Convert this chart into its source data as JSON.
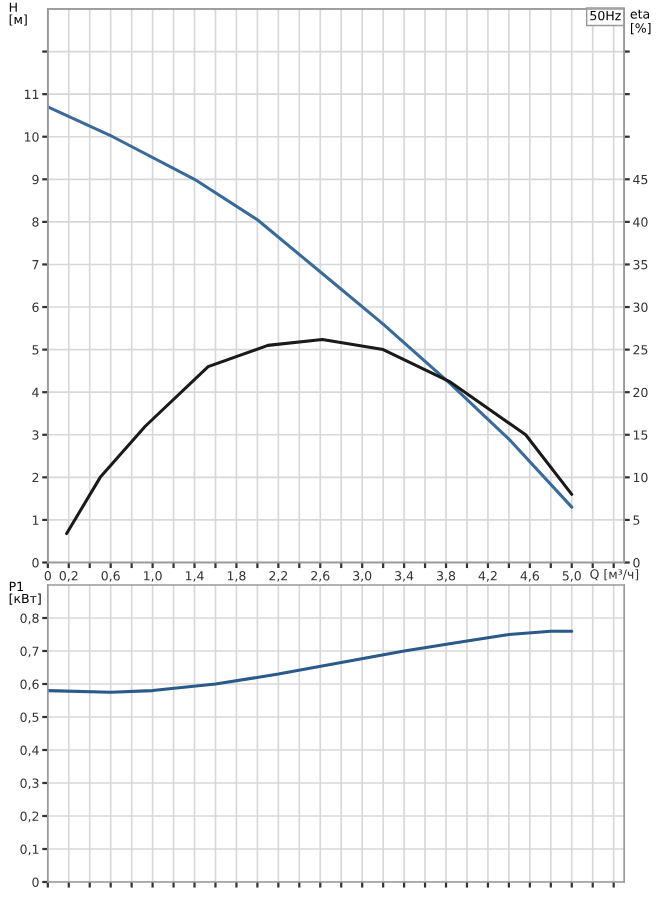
{
  "chart_data": [
    {
      "type": "line",
      "ylabel": "H\n[м]",
      "y2label": "eta\n[%]",
      "xlabel": "Q [м³/ч]",
      "annotations": [
        "50Hz"
      ],
      "xlim": [
        0,
        5.5
      ],
      "xticks": [
        0,
        {
          "value": 0.2,
          "label": "0,2"
        },
        {
          "value": 0.4,
          "label": null
        },
        {
          "value": 0.6,
          "label": "0,6"
        },
        {
          "value": 0.8,
          "label": null
        },
        {
          "value": 1.0,
          "label": "1,0"
        },
        {
          "value": 1.2,
          "label": null
        },
        {
          "value": 1.4,
          "label": "1,4"
        },
        {
          "value": 1.6,
          "label": null
        },
        {
          "value": 1.8,
          "label": "1,8"
        },
        {
          "value": 2.0,
          "label": null
        },
        {
          "value": 2.2,
          "label": "2,2"
        },
        {
          "value": 2.4,
          "label": null
        },
        {
          "value": 2.6,
          "label": "2,6"
        },
        {
          "value": 2.8,
          "label": null
        },
        {
          "value": 3.0,
          "label": "3,0"
        },
        {
          "value": 3.2,
          "label": null
        },
        {
          "value": 3.4,
          "label": "3,4"
        },
        {
          "value": 3.6,
          "label": null
        },
        {
          "value": 3.8,
          "label": "3,8"
        },
        {
          "value": 4.0,
          "label": null
        },
        {
          "value": 4.2,
          "label": "4,2"
        },
        {
          "value": 4.4,
          "label": null
        },
        {
          "value": 4.6,
          "label": "4,6"
        },
        {
          "value": 4.8,
          "label": null
        },
        {
          "value": 5.0,
          "label": "5,0"
        },
        {
          "value": 5.2,
          "label": null
        },
        {
          "value": 5.4,
          "label": null
        }
      ],
      "ylim": [
        0,
        13
      ],
      "yticks": [
        0,
        1,
        2,
        3,
        4,
        5,
        6,
        7,
        8,
        9,
        10,
        11,
        {
          "value": 12,
          "label": null
        }
      ],
      "y2lim": [
        0,
        65
      ],
      "y2ticks": [
        0,
        5,
        10,
        15,
        20,
        25,
        30,
        35,
        40,
        45,
        {
          "value": 50,
          "label": null
        },
        {
          "value": 55,
          "label": null
        },
        {
          "value": 60,
          "label": null
        }
      ],
      "grid": true,
      "series": [
        {
          "color": "#3a6a9a",
          "x": [
            0,
            0.62,
            1.4,
            2.0,
            2.76,
            3.2,
            3.84,
            4.4,
            5.0
          ],
          "values": [
            10.7,
            10.0,
            9.0,
            8.05,
            6.5,
            5.6,
            4.2,
            2.9,
            1.3
          ]
        },
        {
          "color": "#1a1a1a",
          "axis": "y2",
          "x": [
            0.18,
            0.5,
            0.93,
            1.53,
            2.1,
            2.62,
            3.2,
            3.84,
            4.56,
            5.0
          ],
          "values": [
            3.4,
            10,
            16,
            23,
            25.5,
            26.2,
            25,
            21.2,
            15,
            8
          ]
        }
      ]
    },
    {
      "type": "line",
      "ylabel": "P1\n[кВт]",
      "tick_labels": "y",
      "grid": true,
      "xlim": [
        0,
        5.5
      ],
      "xticks": [
        0,
        0.2,
        0.4,
        0.6,
        0.8,
        1.0,
        1.2,
        1.4,
        1.6,
        1.8,
        2.0,
        2.2,
        2.4,
        2.6,
        2.8,
        3.0,
        3.2,
        3.4,
        3.6,
        3.8,
        4.0,
        4.2,
        4.4,
        4.6,
        4.8,
        5.0,
        5.2,
        5.4
      ],
      "ylim": [
        0,
        0.9
      ],
      "yticks": [
        0,
        {
          "value": 0.1,
          "label": "0,1"
        },
        {
          "value": 0.2,
          "label": "0,2"
        },
        {
          "value": 0.3,
          "label": "0,3"
        },
        {
          "value": 0.4,
          "label": "0,4"
        },
        {
          "value": 0.5,
          "label": "0,5"
        },
        {
          "value": 0.6,
          "label": "0,6"
        },
        {
          "value": 0.7,
          "label": "0,7"
        },
        {
          "value": 0.8,
          "label": "0,8"
        }
      ],
      "series": [
        {
          "color": "#2a5a8a",
          "x": [
            0,
            0.6,
            1.0,
            1.6,
            2.2,
            2.8,
            3.4,
            4.0,
            4.4,
            4.8,
            5.0
          ],
          "values": [
            0.58,
            0.575,
            0.58,
            0.6,
            0.63,
            0.665,
            0.7,
            0.73,
            0.75,
            0.76,
            0.76
          ]
        }
      ]
    }
  ]
}
